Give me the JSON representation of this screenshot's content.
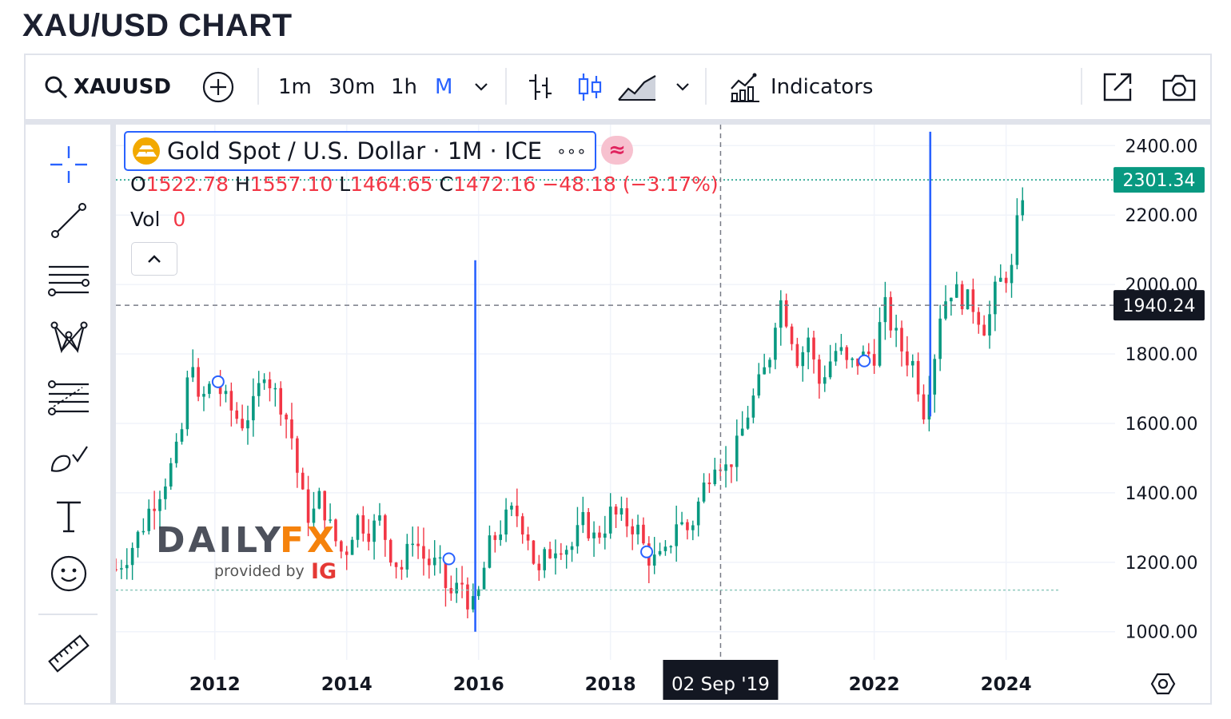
{
  "page": {
    "title": "XAU/USD CHART"
  },
  "toolbar": {
    "symbol": "XAUUSD",
    "intervals": [
      "1m",
      "30m",
      "1h",
      "M"
    ],
    "active_interval": "M",
    "indicators_label": "Indicators"
  },
  "legend": {
    "title": "Gold Spot / U.S. Dollar · 1M · ICE",
    "more": "∘∘∘",
    "ohlc": {
      "o_label": "O",
      "o": "1522.78",
      "h_label": "H",
      "h": "1557.10",
      "l_label": "L",
      "l": "1464.65",
      "c_label": "C",
      "c": "1472.16",
      "change": "−48.18 (−3.17%)"
    },
    "vol_label": "Vol",
    "vol": "0"
  },
  "crosshair": {
    "date_label": "02 Sep '19",
    "price_label": "1940.24"
  },
  "last_price_label": "2301.34",
  "watermark": {
    "brand_a": "DAILY",
    "brand_b": "FX",
    "provided_by": "provided by",
    "ig": "IG"
  },
  "colors": {
    "up": "#089981",
    "down": "#f23645",
    "accent": "#2962ff",
    "last_price_bg": "#089981",
    "crosshair_bg": "#131722"
  },
  "chart_data": {
    "type": "candlestick",
    "title": "Gold Spot / U.S. Dollar · 1M · ICE",
    "y_ticks": [
      "2400.00",
      "2200.00",
      "2000.00",
      "1800.00",
      "1600.00",
      "1400.00",
      "1200.00",
      "1000.00"
    ],
    "x_ticks": [
      "2012",
      "2014",
      "2016",
      "2018",
      "2022",
      "2024"
    ],
    "ylim": [
      915,
      2440
    ],
    "xlim": [
      2010.5,
      2025.0
    ],
    "grid": true,
    "last_close": 2301.34,
    "marked_line": 1120,
    "close_trend": [
      [
        2010.5,
        1180
      ],
      [
        2010.7,
        1230
      ],
      [
        2010.9,
        1300
      ],
      [
        2011.0,
        1350
      ],
      [
        2011.2,
        1420
      ],
      [
        2011.4,
        1500
      ],
      [
        2011.5,
        1580
      ],
      [
        2011.65,
        1820
      ],
      [
        2011.75,
        1650
      ],
      [
        2011.9,
        1700
      ],
      [
        2012.0,
        1720
      ],
      [
        2012.2,
        1650
      ],
      [
        2012.4,
        1600
      ],
      [
        2012.6,
        1650
      ],
      [
        2012.75,
        1760
      ],
      [
        2012.9,
        1690
      ],
      [
        2013.0,
        1660
      ],
      [
        2013.15,
        1580
      ],
      [
        2013.3,
        1400
      ],
      [
        2013.45,
        1320
      ],
      [
        2013.6,
        1390
      ],
      [
        2013.75,
        1300
      ],
      [
        2013.9,
        1230
      ],
      [
        2014.0,
        1240
      ],
      [
        2014.15,
        1330
      ],
      [
        2014.35,
        1290
      ],
      [
        2014.5,
        1320
      ],
      [
        2014.7,
        1210
      ],
      [
        2014.85,
        1180
      ],
      [
        2015.0,
        1280
      ],
      [
        2015.2,
        1200
      ],
      [
        2015.4,
        1190
      ],
      [
        2015.55,
        1100
      ],
      [
        2015.75,
        1140
      ],
      [
        2015.9,
        1060
      ],
      [
        2016.0,
        1110
      ],
      [
        2016.15,
        1240
      ],
      [
        2016.4,
        1320
      ],
      [
        2016.55,
        1350
      ],
      [
        2016.75,
        1280
      ],
      [
        2016.9,
        1150
      ],
      [
        2017.0,
        1210
      ],
      [
        2017.2,
        1260
      ],
      [
        2017.4,
        1240
      ],
      [
        2017.6,
        1320
      ],
      [
        2017.75,
        1270
      ],
      [
        2017.9,
        1300
      ],
      [
        2018.0,
        1340
      ],
      [
        2018.2,
        1320
      ],
      [
        2018.4,
        1300
      ],
      [
        2018.55,
        1220
      ],
      [
        2018.7,
        1200
      ],
      [
        2018.85,
        1220
      ],
      [
        2019.0,
        1320
      ],
      [
        2019.2,
        1290
      ],
      [
        2019.4,
        1410
      ],
      [
        2019.6,
        1510
      ],
      [
        2019.75,
        1470
      ],
      [
        2019.9,
        1520
      ],
      [
        2020.0,
        1580
      ],
      [
        2020.1,
        1640
      ],
      [
        2020.25,
        1710
      ],
      [
        2020.4,
        1780
      ],
      [
        2020.55,
        1970
      ],
      [
        2020.7,
        1890
      ],
      [
        2020.85,
        1780
      ],
      [
        2021.0,
        1850
      ],
      [
        2021.15,
        1710
      ],
      [
        2021.3,
        1770
      ],
      [
        2021.45,
        1820
      ],
      [
        2021.6,
        1760
      ],
      [
        2021.75,
        1780
      ],
      [
        2021.9,
        1800
      ],
      [
        2022.0,
        1800
      ],
      [
        2022.15,
        1940
      ],
      [
        2022.3,
        1860
      ],
      [
        2022.45,
        1800
      ],
      [
        2022.6,
        1770
      ],
      [
        2022.75,
        1640
      ],
      [
        2022.9,
        1780
      ],
      [
        2023.0,
        1920
      ],
      [
        2023.15,
        1990
      ],
      [
        2023.35,
        1960
      ],
      [
        2023.5,
        1940
      ],
      [
        2023.7,
        1870
      ],
      [
        2023.85,
        1990
      ],
      [
        2024.0,
        2030
      ],
      [
        2024.1,
        2040
      ],
      [
        2024.2,
        2230
      ],
      [
        2024.3,
        2301
      ]
    ],
    "swing_markers": [
      [
        2012.05,
        1720
      ],
      [
        2015.55,
        1210
      ],
      [
        2018.55,
        1230
      ],
      [
        2021.85,
        1780
      ]
    ],
    "blue_verticals": [
      [
        2015.95,
        1000,
        2070
      ],
      [
        2022.85,
        1620,
        2440
      ]
    ],
    "crosshair_x": 2019.67
  }
}
